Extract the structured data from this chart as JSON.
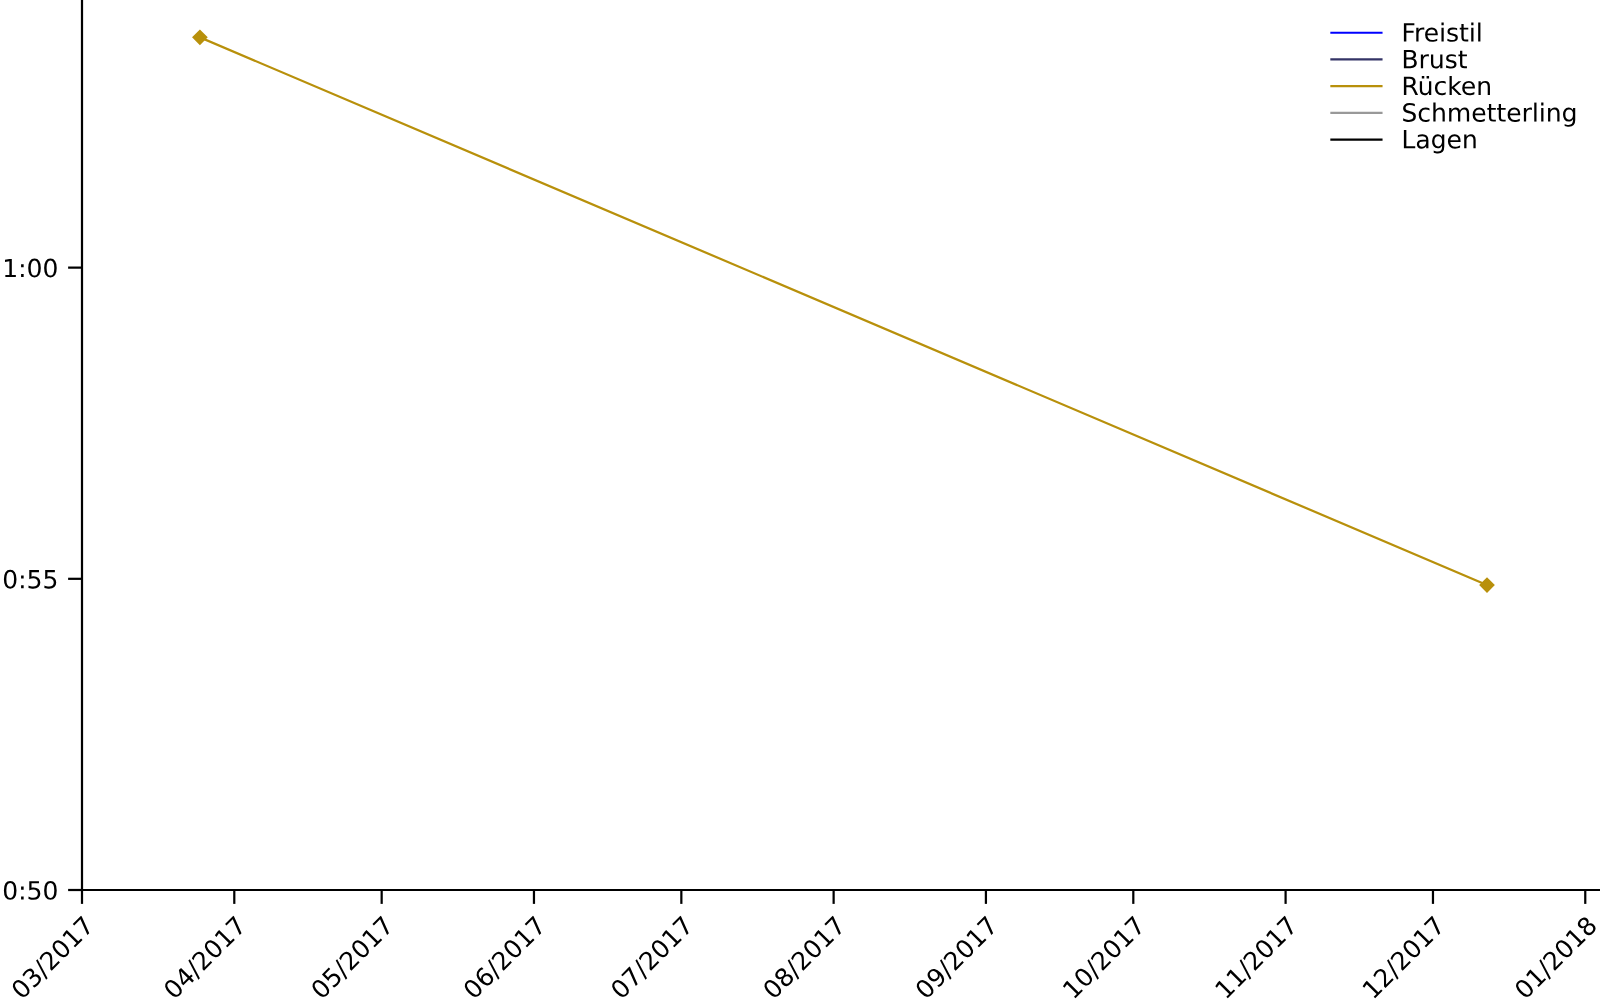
{
  "chart_data": {
    "type": "line",
    "x": [
      "2017-03-25",
      "2017-12-12"
    ],
    "series": [
      {
        "name": "Freistil",
        "color": "#0000ff",
        "values": [
          null,
          null
        ]
      },
      {
        "name": "Brust",
        "color": "#333366",
        "values": [
          null,
          null
        ]
      },
      {
        "name": "Rücken",
        "color": "#b8900b",
        "values": [
          63.7,
          54.9
        ]
      },
      {
        "name": "Schmetterling",
        "color": "#999999",
        "values": [
          null,
          null
        ]
      },
      {
        "name": "Lagen",
        "color": "#000000",
        "values": [
          null,
          null
        ]
      }
    ],
    "xlim": [
      "2017-03-01",
      "2018-01-04"
    ],
    "xticks": [
      {
        "value": "2017-03-01",
        "label": "03/2017"
      },
      {
        "value": "2017-04-01",
        "label": "04/2017"
      },
      {
        "value": "2017-05-01",
        "label": "05/2017"
      },
      {
        "value": "2017-06-01",
        "label": "06/2017"
      },
      {
        "value": "2017-07-01",
        "label": "07/2017"
      },
      {
        "value": "2017-08-01",
        "label": "08/2017"
      },
      {
        "value": "2017-09-01",
        "label": "09/2017"
      },
      {
        "value": "2017-10-01",
        "label": "10/2017"
      },
      {
        "value": "2017-11-01",
        "label": "11/2017"
      },
      {
        "value": "2017-12-01",
        "label": "12/2017"
      },
      {
        "value": "2018-01-01",
        "label": "01/2018"
      }
    ],
    "ylim": [
      50,
      64.3
    ],
    "yticks": [
      {
        "value": 50,
        "label": "0:50"
      },
      {
        "value": 55,
        "label": "0:55"
      },
      {
        "value": 60,
        "label": "1:00"
      }
    ],
    "marker": "diamond",
    "line_style": "solid",
    "grid": false,
    "legend": "top right"
  }
}
